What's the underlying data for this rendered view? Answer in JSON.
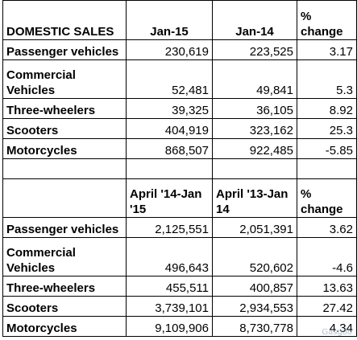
{
  "top": {
    "title": "DOMESTIC SALES",
    "col1": "Jan-15",
    "col2": "Jan-14",
    "col3": "% change",
    "rows": [
      {
        "label": "Passenger vehicles",
        "v1": "230,619",
        "v2": "223,525",
        "v3": "3.17"
      },
      {
        "label": "Commercial Vehicles",
        "v1": "52,481",
        "v2": "49,841",
        "v3": "5.3"
      },
      {
        "label": "Three-wheelers",
        "v1": "39,325",
        "v2": "36,105",
        "v3": "8.92"
      },
      {
        "label": "Scooters",
        "v1": "404,919",
        "v2": "323,162",
        "v3": "25.3"
      },
      {
        "label": "Motorcycles",
        "v1": "868,507",
        "v2": "922,485",
        "v3": "-5.85"
      }
    ]
  },
  "bottom": {
    "col1": "April '14-Jan '15",
    "col2": "April '13-Jan 14",
    "col3": "% change",
    "rows": [
      {
        "label": "Passenger vehicles",
        "v1": "2,125,551",
        "v2": "2,051,391",
        "v3": "3.62"
      },
      {
        "label": "Commercial Vehicles",
        "v1": "496,643",
        "v2": "520,602",
        "v3": "-4.6"
      },
      {
        "label": "Three-wheelers",
        "v1": "455,511",
        "v2": "400,857",
        "v3": "13.63"
      },
      {
        "label": "Scooters",
        "v1": "3,739,101",
        "v2": "2,934,553",
        "v3": "27.42"
      },
      {
        "label": "Motorcycles",
        "v1": "9,109,906",
        "v2": "8,730,778",
        "v3": "4.34"
      }
    ]
  },
  "watermark": "Gasgoo"
}
